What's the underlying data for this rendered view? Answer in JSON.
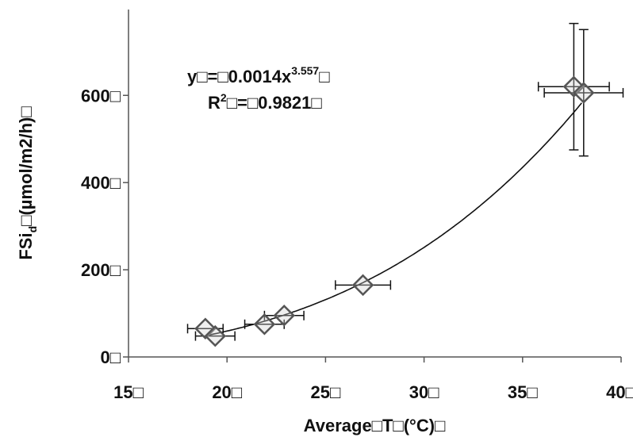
{
  "chart_data": {
    "type": "scatter",
    "xlabel": "Average□T□(°C)□",
    "ylabel": "FSi_d□(µmol/m2/h)□",
    "ylabel_parts": {
      "main": "FSi",
      "sub": "d",
      "rest": "□(µmol/m2/h)□"
    },
    "xlim": [
      15,
      40
    ],
    "ylim": [
      0,
      750
    ],
    "x_ticks": [
      15,
      20,
      25,
      30,
      35,
      40
    ],
    "y_ticks": [
      0,
      200,
      400,
      600
    ],
    "x_tick_labels": [
      "15□",
      "20□",
      "25□",
      "30□",
      "35□",
      "40□"
    ],
    "y_tick_labels": [
      "0□",
      "200□",
      "400□",
      "600□"
    ],
    "grid": false,
    "series": [
      {
        "marker": "diamond",
        "points": [
          {
            "x": 18.9,
            "y": 65,
            "xerr": 0.9,
            "yerr": 0
          },
          {
            "x": 19.4,
            "y": 48,
            "xerr": 1.0,
            "yerr": 0
          },
          {
            "x": 21.9,
            "y": 75,
            "xerr": 1.0,
            "yerr": 0
          },
          {
            "x": 22.9,
            "y": 95,
            "xerr": 1.0,
            "yerr": 0
          },
          {
            "x": 26.9,
            "y": 165,
            "xerr": 1.4,
            "yerr": 0
          },
          {
            "x": 37.6,
            "y": 620,
            "xerr": 1.8,
            "yerr": 145
          },
          {
            "x": 38.1,
            "y": 606,
            "xerr": 2.0,
            "yerr": 145
          }
        ]
      }
    ],
    "trendline": {
      "type": "power",
      "coefficient": 0.0014,
      "exponent": 3.557,
      "r2": 0.9821,
      "x_range": [
        19,
        38
      ]
    },
    "annotations": {
      "equation_main": "y□=□0.0014x",
      "equation_exp": "3.557",
      "equation_tail": "□",
      "r2_main": "R",
      "r2_sup": "2",
      "r2_rest": "□=□0.9821□"
    },
    "colors": {
      "marker_fill": "#d0d0d0",
      "marker_stroke": "#555555",
      "line": "#111111",
      "axis": "#555555"
    }
  }
}
